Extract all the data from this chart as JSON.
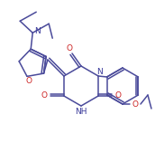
{
  "background": "#ffffff",
  "line_color": "#4a4a9a",
  "line_width": 1.1,
  "figsize": [
    1.72,
    1.58
  ],
  "dpi": 100,
  "xlim": [
    0,
    172
  ],
  "ylim": [
    0,
    158
  ]
}
